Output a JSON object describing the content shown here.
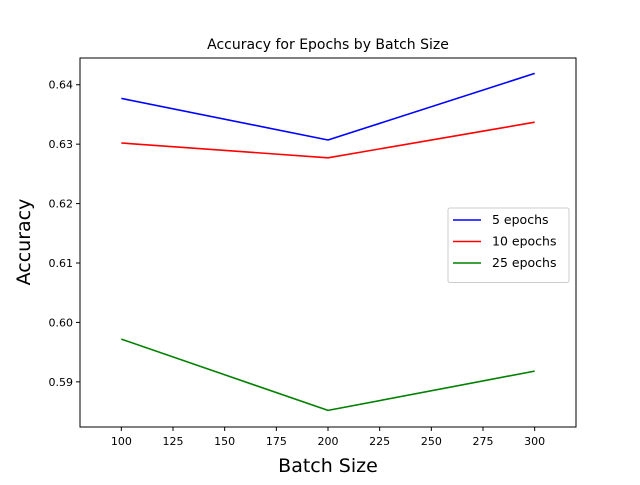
{
  "chart_data": {
    "type": "line",
    "title": "Accuracy for Epochs by Batch Size",
    "xlabel": "Batch Size",
    "ylabel": "Accuracy",
    "x": [
      100,
      200,
      300
    ],
    "xlim": [
      80,
      320
    ],
    "ylim": [
      0.5824,
      0.6445
    ],
    "xticks": [
      100,
      125,
      150,
      175,
      200,
      225,
      250,
      275,
      300
    ],
    "xtick_labels": [
      "100",
      "125",
      "150",
      "175",
      "200",
      "225",
      "250",
      "275",
      "300"
    ],
    "yticks": [
      0.59,
      0.6,
      0.61,
      0.62,
      0.63,
      0.64
    ],
    "ytick_labels": [
      "0.59",
      "0.60",
      "0.61",
      "0.62",
      "0.63",
      "0.64"
    ],
    "grid": false,
    "legend_position": "center-right",
    "series": [
      {
        "name": "5 epochs",
        "color": "#0000ff",
        "values": [
          0.6377,
          0.6307,
          0.6419
        ]
      },
      {
        "name": "10 epochs",
        "color": "#ff0000",
        "values": [
          0.6302,
          0.6277,
          0.6337
        ]
      },
      {
        "name": "25 epochs",
        "color": "#008000",
        "values": [
          0.5972,
          0.5852,
          0.5918
        ]
      }
    ]
  }
}
